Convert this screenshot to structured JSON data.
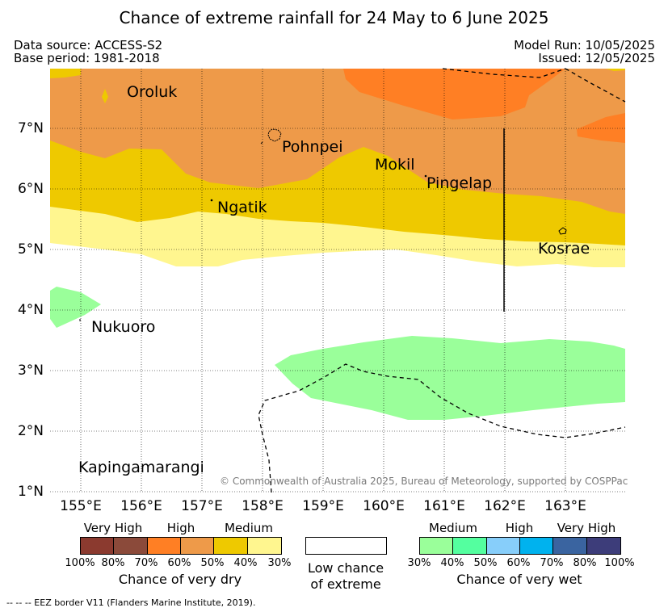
{
  "title": "Chance of extreme rainfall for 24 May to 6 June 2025",
  "data_source": "Data source: ACCESS-S2",
  "base_period": "Base period: 1981-2018",
  "model_run": "Model Run: 10/05/2025",
  "issued": "Issued: 12/05/2025",
  "places": {
    "oroluk": "Oroluk",
    "pohnpei": "Pohnpei",
    "mokil": "Mokil",
    "pingelap": "Pingelap",
    "ngatik": "Ngatik",
    "kosrae": "Kosrae",
    "nukuoro": "Nukuoro",
    "kapingamarangi": "Kapingamarangi"
  },
  "lat_ticks": [
    "7°N",
    "6°N",
    "5°N",
    "4°N",
    "3°N",
    "2°N",
    "1°N"
  ],
  "lon_ticks": [
    "155°E",
    "156°E",
    "157°E",
    "158°E",
    "159°E",
    "160°E",
    "161°E",
    "162°E",
    "163°E"
  ],
  "copyright": "© Commonwealth of Australia 2025, Bureau of Meteorology, supported by COSPPac",
  "colors": {
    "dry_very_high_100": "#8b3a2f",
    "dry_very_high_80": "#8b4a3a",
    "dry_high_70": "#ff7f24",
    "dry_high_60": "#ee9a49",
    "dry_medium_50": "#eec900",
    "dry_medium_40": "#fff68f",
    "wet_medium_30": "#9aff9a",
    "wet_medium_40": "#54ff9f",
    "wet_high_50": "#87cefa",
    "wet_high_60": "#00b2ee",
    "wet_very_high_70": "#3a64a0",
    "wet_very_high_80": "#3d3d7a"
  },
  "legend": {
    "dry": {
      "headers": [
        "Very High",
        "High",
        "Medium"
      ],
      "percents": [
        "100%",
        "80%",
        "70%",
        "60%",
        "50%",
        "40%",
        "30%"
      ],
      "caption": "Chance of very dry"
    },
    "low": {
      "line1": "Low chance",
      "line2": "of extreme"
    },
    "wet": {
      "headers": [
        "Medium",
        "High",
        "Very High"
      ],
      "percents": [
        "30%",
        "40%",
        "50%",
        "60%",
        "70%",
        "80%",
        "100%"
      ],
      "caption": "Chance of very wet"
    }
  },
  "footer": "--  --  -- EEZ border V11 (Flanders Marine Institute, 2019)."
}
